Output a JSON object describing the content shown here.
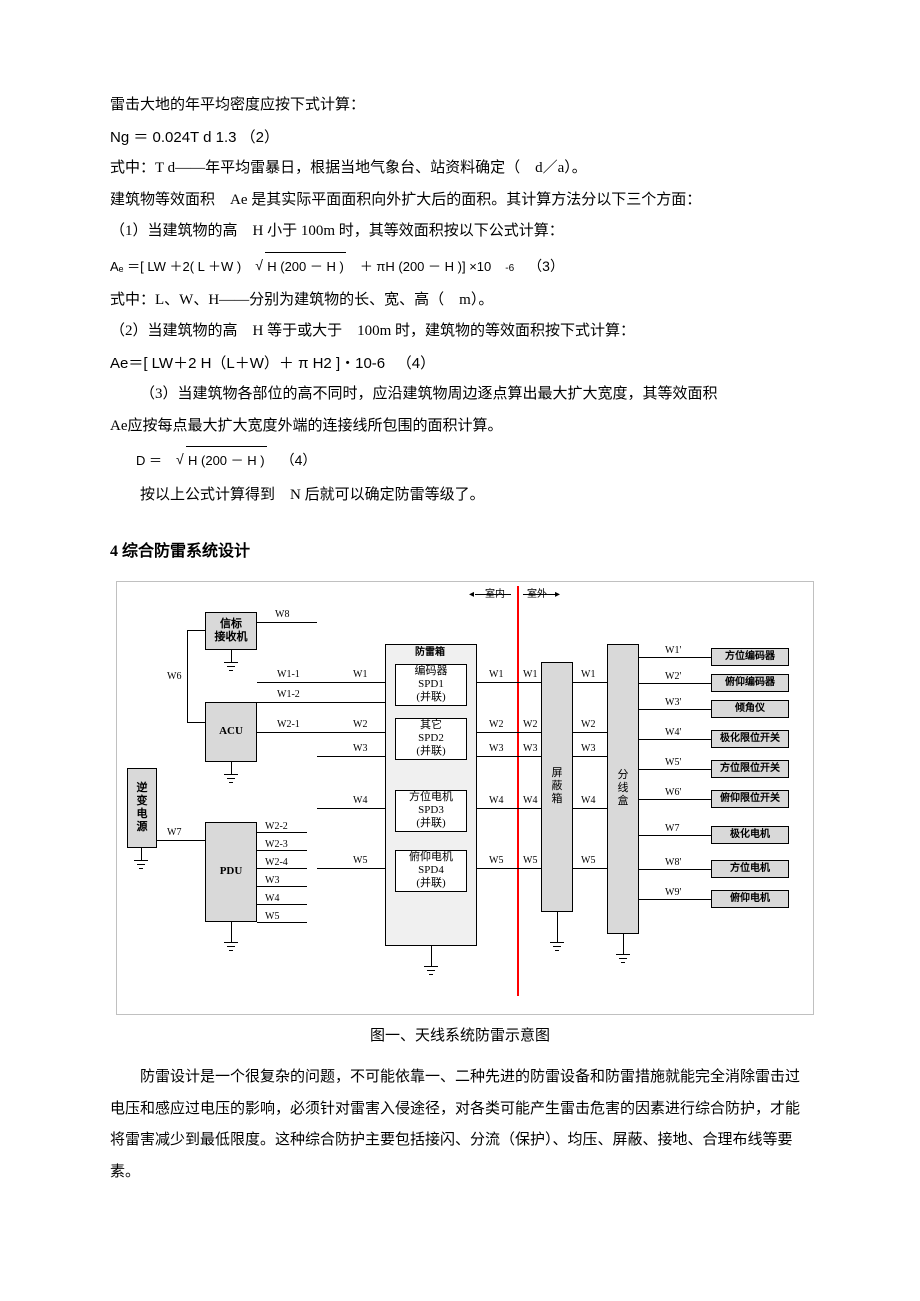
{
  "para": {
    "p1": "雷击大地的年平均密度应按下式计算：",
    "f2": "Ng ＝ 0.024T d 1.3 （2）",
    "p2": "式中：T d——年平均雷暴日，根据当地气象台、站资料确定（　d／a）。",
    "p3": "建筑物等效面积　Ae 是其实际平面面积向外扩大后的面积。其计算方法分以下三个方面：",
    "p4": "（1）当建筑物的高　H 小于 100m 时，其等效面积按以下公式计算：",
    "f3a": "Aₑ ＝[ LW  ＋2( L ＋W )",
    "f3b": "H (200 － H )",
    "f3c": " ＋ πH (200 － H )] ×10",
    "f3exp": "-6",
    "f3lbl": "（3）",
    "p5": "式中：L、W、H——分别为建筑物的长、宽、高（　m）。",
    "p6": "（2）当建筑物的高　H 等于或大于　100m 时，建筑物的等效面积按下式计算：",
    "f4": "Ae＝[ LW＋2 H（L＋W）＋ π H2 ]・10-6 　（4）",
    "p7a": "（3）当建筑物各部位的高不同时，应沿建筑物周边逐点算出最大扩大宽度，其等效面积",
    "p7b": "Ae应按每点最大扩大宽度外端的连接线所包围的面积计算。",
    "fDa": "D ＝",
    "fDb": "H (200 － H )",
    "fDlbl": "（4）",
    "p8": "按以上公式计算得到　N 后就可以确定防雷等级了。",
    "h4": "4 综合防雷系统设计",
    "caption": "图一、天线系统防雷示意图",
    "p9": "防雷设计是一个很复杂的问题，不可能依靠一、二种先进的防雷设备和防雷措施就能完全消除雷击过电压和感应过电压的影响，必须针对雷害入侵途径，对各类可能产生雷击危害的因素进行综合防护，才能将雷害减少到最低限度。这种综合防护主要包括接闪、分流（保护）、均压、屏蔽、接地、合理布线等要素。"
  },
  "diagram": {
    "header": {
      "indoor": "室内",
      "outdoor": "室外"
    },
    "boxes": {
      "xinbiao": "信标\n接收机",
      "acu": "ACU",
      "pdu": "PDU",
      "nibiandy": "逆\n变\n电\n源",
      "fangleixiang": "防雷箱",
      "spd1": "编码器\nSPD1\n(并联)",
      "spd2": "其它\nSPD2\n(并联)",
      "spd3": "方位电机\nSPD3\n(并联)",
      "spd4": "俯仰电机\nSPD4\n(并联)",
      "pingbi": "屏\n蔽\n箱",
      "fenxian": "分\n线\n盒",
      "out1": "方位编码器",
      "out2": "俯仰编码器",
      "out3": "倾角仪",
      "out4": "极化限位开关",
      "out5": "方位限位开关",
      "out6": "俯仰限位开关",
      "out7": "极化电机",
      "out8": "方位电机",
      "out9": "俯仰电机"
    },
    "wires": {
      "w6": "W6",
      "w7": "W7",
      "w8": "W8",
      "w11": "W1-1",
      "w12": "W1-2",
      "w21": "W2-1",
      "w22": "W2-2",
      "w23": "W2-3",
      "w24": "W2-4",
      "w3a": "W3",
      "w4a": "W4",
      "w5a": "W5",
      "w1": "W1",
      "w2": "W2",
      "w3": "W3",
      "w4": "W4",
      "w5": "W5",
      "w1p": "W1'",
      "w2p": "W2'",
      "w3p": "W3'",
      "w4p": "W4'",
      "w5p": "W5'",
      "w6p": "W6'",
      "w7p": "W7",
      "w8p": "W8'",
      "w9p": "W9'"
    },
    "colors": {
      "box_fill": "#d9d9d9",
      "red": "#ff0000",
      "border": "#000000",
      "frame": "#c0c0c0"
    }
  }
}
